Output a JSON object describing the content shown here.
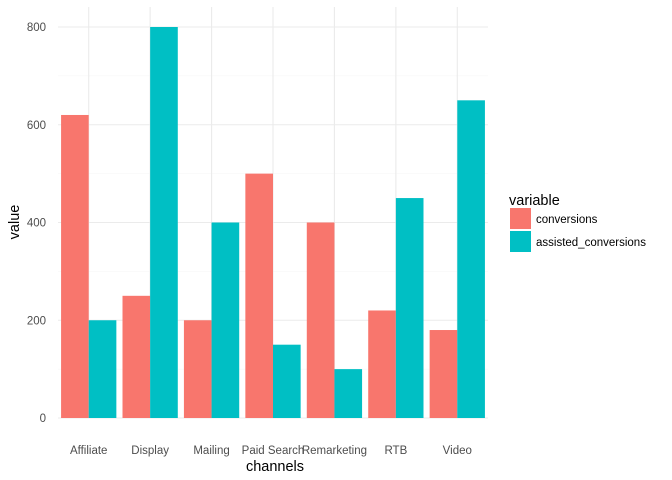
{
  "chart_data": {
    "type": "bar",
    "xlabel": "channels",
    "ylabel": "value",
    "categories": [
      "Affiliate",
      "Display",
      "Mailing",
      "Paid Search",
      "Remarketing",
      "RTB",
      "Video"
    ],
    "series": [
      {
        "name": "conversions",
        "color": "#f8766d",
        "values": [
          620,
          250,
          200,
          500,
          400,
          220,
          180
        ]
      },
      {
        "name": "assisted_conversions",
        "color": "#00bfc4",
        "values": [
          200,
          800,
          400,
          150,
          100,
          450,
          650
        ]
      }
    ],
    "ylim": [
      0,
      820
    ],
    "yticks": [
      0,
      200,
      400,
      600,
      800
    ],
    "grid": true,
    "legend": {
      "title": "variable",
      "placement": "right"
    }
  }
}
